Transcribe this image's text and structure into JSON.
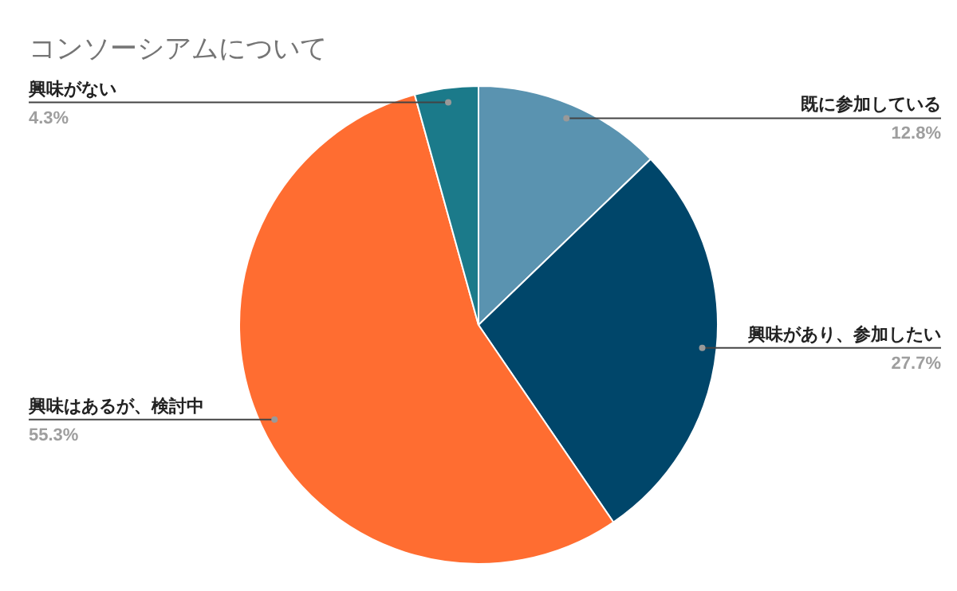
{
  "chart_data": {
    "type": "pie",
    "title": "コンソーシアムについて",
    "categories": [
      "既に参加している",
      "興味があり、参加したい",
      "興味はあるが、検討中",
      "興味がない"
    ],
    "values": [
      12.8,
      27.7,
      55.3,
      4.3
    ],
    "value_labels": [
      "12.8%",
      "27.7%",
      "55.3%",
      "4.3%"
    ],
    "colors": [
      "#5a93b0",
      "#00466a",
      "#ff6d31",
      "#1b7a8a"
    ]
  }
}
